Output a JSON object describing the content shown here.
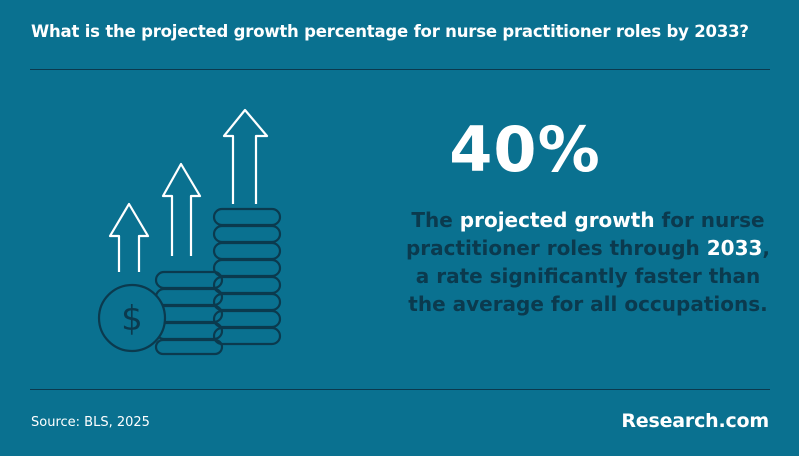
{
  "header": {
    "question": "What is the projected growth percentage for nurse practitioner roles by 2033?"
  },
  "stat": {
    "value": "40%"
  },
  "description": {
    "part1": "The ",
    "highlight1": "projected growth",
    "part2": " for nurse practitioner roles through ",
    "highlight2": "2033",
    "part3": ", a rate significantly faster than the average for all occupations."
  },
  "footer": {
    "source": "Source: BLS, 2025",
    "brand": "Research.com"
  },
  "icons": [
    "growth-arrows-icon",
    "coin-stack-icon",
    "dollar-coin-icon"
  ],
  "colors": {
    "background": "#0a7190",
    "dark": "#0b3a4e",
    "highlight": "#ffffff"
  }
}
